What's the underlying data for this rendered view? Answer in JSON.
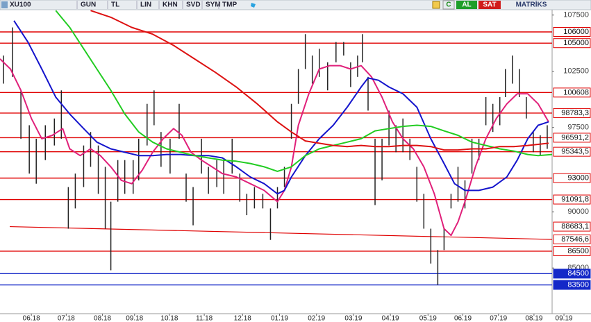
{
  "toolbar": {
    "symbol": "XU100",
    "buttons": [
      "GUN",
      "TL",
      "LIN",
      "KHN",
      "SVD",
      "SYM",
      "TMP"
    ],
    "actions": [
      "C",
      "AL",
      "SAT"
    ],
    "brand": "MATRİKS"
  },
  "chart_data": {
    "type": "stock",
    "x": [
      0,
      1.3,
      2.5,
      3.7,
      4.7,
      6.0,
      7.3,
      8.3,
      9.3,
      10.3,
      11.5,
      12.5,
      13.6,
      14.6,
      15.4,
      16.4,
      17.4,
      18.6,
      19.4,
      20.6,
      21.6,
      22.6,
      23.9,
      25.2,
      26.2,
      27.2,
      28.4,
      29.4,
      30.6,
      31.6,
      32.8,
      33.9,
      34.9,
      36.0,
      37.2,
      38.3,
      39.3,
      40.3,
      41.3,
      42.3,
      43.3,
      44.3,
      45.3,
      46.5,
      47.7,
      48.8,
      49.8,
      50.8,
      51.5,
      52.3,
      53.3,
      54.3,
      55.3,
      56.3,
      57.3,
      58.3,
      59.3,
      60.3,
      61.3,
      62.3,
      63.2,
      64.2,
      65.2,
      66.2,
      67.2,
      68.2,
      69.2,
      70.2,
      71.2,
      72.0,
      73.0,
      74.0,
      75.0,
      76.0,
      77.0,
      78.0
    ],
    "high": [
      103900,
      106400,
      100800,
      97700,
      96500,
      97700,
      98300,
      100800,
      92200,
      93400,
      95900,
      97100,
      95900,
      94000,
      90900,
      94600,
      94600,
      94600,
      96500,
      99600,
      100800,
      97100,
      96500,
      99600,
      93400,
      92200,
      96500,
      94000,
      94600,
      94600,
      96500,
      93400,
      91600,
      92200,
      91600,
      90300,
      92200,
      94000,
      99600,
      102700,
      105800,
      103900,
      104500,
      103300,
      105100,
      105100,
      103300,
      103900,
      105800,
      102000,
      96500,
      96500,
      99000,
      97700,
      98300,
      96500,
      94000,
      91600,
      88500,
      86600,
      88500,
      91600,
      94000,
      92800,
      96500,
      96500,
      100200,
      99600,
      100200,
      102700,
      103900,
      102700,
      100200,
      97100,
      96800,
      97700
    ],
    "low": [
      101400,
      102000,
      96500,
      93400,
      92500,
      94600,
      95900,
      96500,
      88500,
      90300,
      92200,
      94000,
      91600,
      88500,
      84800,
      90900,
      91600,
      91600,
      92800,
      95900,
      97700,
      94000,
      93400,
      96500,
      90900,
      88800,
      93400,
      91600,
      92200,
      91600,
      93400,
      90900,
      89700,
      90300,
      90300,
      87500,
      90300,
      92200,
      96500,
      99600,
      102700,
      101400,
      102000,
      100800,
      103300,
      103900,
      101100,
      102000,
      103300,
      99000,
      90600,
      92800,
      95900,
      95300,
      95300,
      94600,
      90900,
      88500,
      85400,
      83500,
      86600,
      90300,
      90900,
      90300,
      93400,
      94600,
      97700,
      97100,
      97700,
      100200,
      101400,
      100200,
      98300,
      95300,
      95000,
      95600
    ],
    "bar_color": "#222222",
    "series": [
      {
        "color": "#e0207a",
        "x": [
          -0.5,
          1.0,
          2.5,
          4.0,
          5.5,
          7.0,
          8.5,
          9.5,
          11.0,
          12.5,
          13.9,
          15.4,
          16.9,
          18.4,
          19.9,
          21.4,
          22.9,
          24.4,
          25.6,
          26.9,
          28.4,
          29.9,
          31.4,
          33.4,
          35.4,
          37.4,
          39.3,
          40.3,
          41.3,
          42.3,
          43.8,
          45.3,
          46.8,
          48.3,
          49.8,
          51.3,
          52.8,
          54.3,
          55.8,
          57.3,
          58.8,
          60.3,
          61.8,
          63.2,
          64.2,
          65.2,
          66.2,
          67.7,
          69.2,
          70.7,
          72.2,
          73.7,
          75.2,
          76.7,
          78.2
        ],
        "values": [
          103600,
          102700,
          100800,
          98300,
          96500,
          96800,
          97400,
          95600,
          95000,
          95600,
          95000,
          94000,
          92800,
          92500,
          93700,
          95300,
          96500,
          97400,
          96800,
          95300,
          94600,
          94000,
          93400,
          93100,
          92500,
          91900,
          90900,
          91900,
          94000,
          97700,
          100500,
          102700,
          103000,
          103000,
          102700,
          103000,
          102000,
          100200,
          98000,
          96500,
          95600,
          94000,
          91600,
          88500,
          87900,
          89100,
          90900,
          94000,
          96500,
          98300,
          99600,
          100500,
          100500,
          99600,
          98000
        ]
      },
      {
        "color": "#1414cc",
        "x": [
          1.5,
          3.5,
          5.5,
          7.5,
          9.5,
          11.5,
          13.4,
          15.4,
          17.4,
          19.4,
          21.4,
          23.4,
          25.4,
          27.4,
          29.4,
          31.4,
          33.4,
          35.4,
          37.4,
          39.3,
          40.3,
          41.3,
          43.3,
          45.3,
          47.3,
          49.3,
          51.3,
          52.3,
          53.8,
          55.3,
          57.3,
          59.3,
          61.3,
          63.2,
          64.7,
          66.2,
          68.2,
          70.2,
          72.2,
          73.7,
          75.2,
          76.7,
          78.2
        ],
        "values": [
          107000,
          105100,
          102700,
          100200,
          98700,
          97400,
          96200,
          95600,
          95300,
          95000,
          95000,
          95100,
          95100,
          95000,
          95000,
          94800,
          94000,
          93100,
          92500,
          91600,
          91900,
          93100,
          95000,
          96500,
          97700,
          99300,
          101100,
          101900,
          101700,
          101100,
          100500,
          99300,
          96500,
          94300,
          92500,
          91900,
          91900,
          92200,
          93100,
          94600,
          96500,
          97700,
          98000
        ]
      },
      {
        "color": "#22cc22",
        "x": [
          7.5,
          9.5,
          11.5,
          13.4,
          15.4,
          17.4,
          19.4,
          21.4,
          23.4,
          25.4,
          27.4,
          29.4,
          31.4,
          33.4,
          35.4,
          37.4,
          39.3,
          41.3,
          43.3,
          45.3,
          47.3,
          49.3,
          51.3,
          53.3,
          55.3,
          57.3,
          59.3,
          61.3,
          63.2,
          65.2,
          67.2,
          69.2,
          71.2,
          73.2,
          75.2,
          76.7,
          78.7
        ],
        "values": [
          107900,
          106400,
          104500,
          102700,
          100800,
          98700,
          97100,
          96200,
          95600,
          95300,
          95000,
          94800,
          94600,
          94500,
          94300,
          94000,
          93600,
          94000,
          95000,
          95600,
          95900,
          96200,
          96500,
          97200,
          97400,
          97600,
          97700,
          97600,
          97200,
          96800,
          96200,
          95900,
          95600,
          95400,
          95100,
          95000,
          95100
        ]
      },
      {
        "color": "#dd1111",
        "x": [
          12.5,
          15.4,
          18.4,
          21.4,
          24.4,
          27.4,
          30.4,
          33.4,
          36.4,
          39.3,
          41.3,
          43.3,
          45.3,
          47.3,
          49.3,
          51.3,
          53.3,
          55.3,
          57.3,
          59.3,
          61.3,
          63.2,
          65.2,
          67.2,
          69.2,
          71.2,
          73.2,
          75.2,
          78.2
        ],
        "values": [
          107900,
          107300,
          106400,
          105800,
          104800,
          103600,
          102400,
          101100,
          99600,
          98000,
          97100,
          96300,
          96100,
          95900,
          95800,
          95900,
          95800,
          95800,
          95900,
          95900,
          95800,
          95500,
          95500,
          95600,
          95600,
          95800,
          95800,
          95900,
          96100
        ]
      }
    ],
    "levels": [
      {
        "value": 106000,
        "color": "#e00000"
      },
      {
        "value": 105000,
        "color": "#e00000"
      },
      {
        "value": 100608,
        "color": "#e00000"
      },
      {
        "value": 98783.3,
        "label": "98783,3",
        "color": "#e00000"
      },
      {
        "value": 96591.2,
        "label": "96591,2",
        "color": "#e00000"
      },
      {
        "value": 95343.5,
        "label": "95343,5",
        "color": "#e00000"
      },
      {
        "value": 93000,
        "color": "#e00000"
      },
      {
        "value": 91091.8,
        "label": "91091,8",
        "color": "#e00000"
      },
      {
        "value": 86500,
        "color": "#e00000"
      },
      {
        "value": 84500,
        "color": "#1428c8"
      },
      {
        "value": 83500,
        "color": "#1428c8"
      }
    ],
    "trendline": {
      "color": "#e00000",
      "x": [
        0.9,
        78.7
      ],
      "values": [
        88683.1,
        87546.6
      ],
      "value_labels": [
        "88683,1",
        "87546,6"
      ]
    },
    "xlim": [
      -0.5,
      78.7
    ],
    "xticks": [
      {
        "value": 4.0,
        "label": "06.18"
      },
      {
        "value": 9.0,
        "label": "07.18"
      },
      {
        "value": 14.2,
        "label": "08.18"
      },
      {
        "value": 18.8,
        "label": "09.18"
      },
      {
        "value": 23.8,
        "label": "10.18"
      },
      {
        "value": 28.8,
        "label": "11.18"
      },
      {
        "value": 34.3,
        "label": "12.18"
      },
      {
        "value": 39.6,
        "label": "01.19"
      },
      {
        "value": 44.9,
        "label": "02.19"
      },
      {
        "value": 50.2,
        "label": "03.19"
      },
      {
        "value": 55.5,
        "label": "04.19"
      },
      {
        "value": 60.9,
        "label": "05.19"
      },
      {
        "value": 65.9,
        "label": "06.19"
      },
      {
        "value": 71.0,
        "label": "07.19"
      },
      {
        "value": 76.1,
        "label": "08.19"
      },
      {
        "value": 80.4,
        "label": "09.19"
      }
    ],
    "ylim": [
      80940,
      107975
    ],
    "yticks": [
      107500,
      102500,
      97500,
      90000,
      85000
    ]
  }
}
